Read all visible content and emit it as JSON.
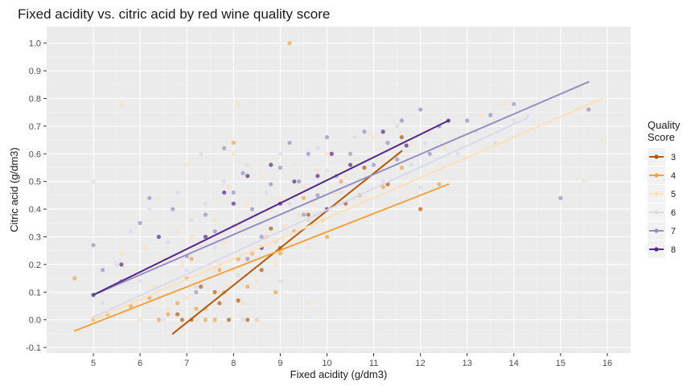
{
  "chart_data": {
    "type": "scatter",
    "title": "Fixed acidity vs. citric acid by red wine quality score",
    "xlabel": "Fixed acidity (g/dm3)",
    "ylabel": "Citric acid (g/dm3)",
    "xlim": [
      4.0,
      16.5
    ],
    "ylim": [
      -0.12,
      1.06
    ],
    "x_ticks": [
      "5",
      "6",
      "7",
      "8",
      "9",
      "10",
      "11",
      "12",
      "13",
      "14",
      "15",
      "16"
    ],
    "y_ticks": [
      "-0.1",
      "0.0",
      "0.1",
      "0.2",
      "0.3",
      "0.4",
      "0.5",
      "0.6",
      "0.7",
      "0.8",
      "0.9",
      "1.0"
    ],
    "grid": true,
    "legend": {
      "title_line1": "Quality",
      "title_line2": "Score",
      "placement": "right",
      "entries": [
        "3",
        "4",
        "5",
        "6",
        "7",
        "8"
      ]
    },
    "series": [
      {
        "name": "3",
        "color": "#b35806",
        "trend": {
          "x": [
            6.7,
            11.6
          ],
          "y": [
            -0.05,
            0.61
          ]
        },
        "points": [
          [
            6.8,
            0.02
          ],
          [
            7.1,
            0.0
          ],
          [
            7.4,
            0.04
          ],
          [
            7.6,
            0.1
          ],
          [
            7.9,
            0.0
          ],
          [
            8.1,
            0.07
          ],
          [
            8.3,
            0.0
          ],
          [
            8.4,
            0.24
          ],
          [
            8.6,
            0.18
          ],
          [
            9.0,
            0.26
          ],
          [
            9.6,
            0.38
          ],
          [
            10.4,
            0.42
          ],
          [
            10.8,
            0.55
          ],
          [
            11.6,
            0.66
          ],
          [
            12.0,
            0.4
          ],
          [
            11.3,
            0.49
          ],
          [
            7.3,
            0.12
          ],
          [
            8.8,
            0.33
          ],
          [
            6.9,
            0.0
          ],
          [
            7.7,
            0.06
          ]
        ]
      },
      {
        "name": "4",
        "color": "#f1a340",
        "trend": {
          "x": [
            4.6,
            12.6
          ],
          "y": [
            -0.04,
            0.49
          ]
        },
        "points": [
          [
            4.6,
            0.15
          ],
          [
            5.0,
            0.0
          ],
          [
            5.3,
            0.02
          ],
          [
            5.8,
            0.05
          ],
          [
            6.2,
            0.08
          ],
          [
            6.4,
            0.0
          ],
          [
            6.8,
            0.06
          ],
          [
            7.0,
            0.15
          ],
          [
            7.1,
            0.22
          ],
          [
            7.2,
            0.04
          ],
          [
            7.4,
            0.0
          ],
          [
            7.7,
            0.18
          ],
          [
            7.8,
            0.1
          ],
          [
            8.0,
            0.64
          ],
          [
            8.1,
            0.22
          ],
          [
            8.3,
            0.12
          ],
          [
            8.5,
            0.0
          ],
          [
            8.7,
            0.3
          ],
          [
            9.0,
            0.24
          ],
          [
            9.2,
            1.0
          ],
          [
            9.5,
            0.44
          ],
          [
            9.9,
            0.36
          ],
          [
            10.3,
            0.5
          ],
          [
            10.7,
            0.45
          ],
          [
            11.2,
            0.48
          ],
          [
            11.6,
            0.55
          ],
          [
            12.4,
            0.49
          ],
          [
            8.9,
            0.1
          ],
          [
            7.6,
            0.0
          ],
          [
            6.6,
            0.02
          ],
          [
            9.3,
            0.32
          ],
          [
            10.0,
            0.3
          ]
        ]
      },
      {
        "name": "5",
        "color": "#fee0b6",
        "trend": {
          "x": [
            5.0,
            15.9
          ],
          "y": [
            0.0,
            0.8
          ]
        },
        "points": [
          [
            5.2,
            0.1
          ],
          [
            5.6,
            0.78
          ],
          [
            5.9,
            0.16
          ],
          [
            6.1,
            0.26
          ],
          [
            6.3,
            0.12
          ],
          [
            6.5,
            0.22
          ],
          [
            6.6,
            0.04
          ],
          [
            6.8,
            0.32
          ],
          [
            6.9,
            0.2
          ],
          [
            7.0,
            0.08
          ],
          [
            7.1,
            0.3
          ],
          [
            7.2,
            0.0
          ],
          [
            7.3,
            0.26
          ],
          [
            7.4,
            0.04
          ],
          [
            7.5,
            0.2
          ],
          [
            7.6,
            0.36
          ],
          [
            7.7,
            0.1
          ],
          [
            7.8,
            0.28
          ],
          [
            7.9,
            0.48
          ],
          [
            8.0,
            0.18
          ],
          [
            8.1,
            0.34
          ],
          [
            8.2,
            0.06
          ],
          [
            8.3,
            0.42
          ],
          [
            8.4,
            0.24
          ],
          [
            8.5,
            0.14
          ],
          [
            8.6,
            0.52
          ],
          [
            8.7,
            0.3
          ],
          [
            8.8,
            0.4
          ],
          [
            8.9,
            0.2
          ],
          [
            9.0,
            0.44
          ],
          [
            9.1,
            0.34
          ],
          [
            9.2,
            0.28
          ],
          [
            9.3,
            0.56
          ],
          [
            9.4,
            0.38
          ],
          [
            9.5,
            0.48
          ],
          [
            9.6,
            0.26
          ],
          [
            9.7,
            0.42
          ],
          [
            9.8,
            0.54
          ],
          [
            9.9,
            0.36
          ],
          [
            10.0,
            0.6
          ],
          [
            10.2,
            0.46
          ],
          [
            10.4,
            0.52
          ],
          [
            10.6,
            0.58
          ],
          [
            10.8,
            0.5
          ],
          [
            11.0,
            0.66
          ],
          [
            11.2,
            0.56
          ],
          [
            11.5,
            0.6
          ],
          [
            11.8,
            0.64
          ],
          [
            12.2,
            0.68
          ],
          [
            12.5,
            0.62
          ],
          [
            13.0,
            0.72
          ],
          [
            13.3,
            0.74
          ],
          [
            13.8,
            0.78
          ],
          [
            15.5,
            0.5
          ],
          [
            15.9,
            0.65
          ],
          [
            7.0,
            0.56
          ],
          [
            6.4,
            0.44
          ],
          [
            8.1,
            0.78
          ],
          [
            7.4,
            0.5
          ],
          [
            6.0,
            0.0
          ],
          [
            5.6,
            0.24
          ],
          [
            8.5,
            0.0
          ],
          [
            8.0,
            0.6
          ],
          [
            9.6,
            0.06
          ],
          [
            7.9,
            0.12
          ]
        ]
      },
      {
        "name": "6",
        "color": "#d8daeb",
        "trend": {
          "x": [
            5.0,
            14.3
          ],
          "y": [
            0.01,
            0.73
          ]
        },
        "points": [
          [
            5.0,
            0.5
          ],
          [
            5.2,
            0.06
          ],
          [
            5.5,
            0.2
          ],
          [
            5.8,
            0.32
          ],
          [
            6.0,
            0.14
          ],
          [
            6.2,
            0.4
          ],
          [
            6.4,
            0.08
          ],
          [
            6.6,
            0.28
          ],
          [
            6.8,
            0.46
          ],
          [
            7.0,
            0.18
          ],
          [
            7.1,
            0.36
          ],
          [
            7.2,
            0.12
          ],
          [
            7.4,
            0.42
          ],
          [
            7.6,
            0.26
          ],
          [
            7.8,
            0.5
          ],
          [
            8.0,
            0.34
          ],
          [
            8.1,
            0.16
          ],
          [
            8.3,
            0.56
          ],
          [
            8.5,
            0.38
          ],
          [
            8.7,
            0.46
          ],
          [
            8.9,
            0.28
          ],
          [
            9.0,
            0.6
          ],
          [
            9.2,
            0.42
          ],
          [
            9.4,
            0.5
          ],
          [
            9.6,
            0.36
          ],
          [
            9.8,
            0.62
          ],
          [
            10.0,
            0.54
          ],
          [
            10.3,
            0.46
          ],
          [
            10.6,
            0.66
          ],
          [
            10.9,
            0.58
          ],
          [
            11.2,
            0.5
          ],
          [
            11.5,
            0.7
          ],
          [
            11.8,
            0.56
          ],
          [
            12.1,
            0.64
          ],
          [
            12.4,
            0.7
          ],
          [
            12.8,
            0.6
          ],
          [
            13.2,
            0.68
          ],
          [
            13.6,
            0.64
          ],
          [
            14.0,
            0.72
          ],
          [
            14.3,
            0.74
          ],
          [
            12.0,
            0.48
          ],
          [
            7.3,
            0.6
          ],
          [
            6.5,
            0.0
          ],
          [
            8.2,
            0.0
          ],
          [
            9.0,
            0.14
          ]
        ]
      },
      {
        "name": "7",
        "color": "#998ec3",
        "trend": {
          "x": [
            5.0,
            15.6
          ],
          "y": [
            0.09,
            0.86
          ]
        },
        "points": [
          [
            5.0,
            0.27
          ],
          [
            5.2,
            0.18
          ],
          [
            5.6,
            0.14
          ],
          [
            6.0,
            0.35
          ],
          [
            6.2,
            0.44
          ],
          [
            6.7,
            0.4
          ],
          [
            7.0,
            0.23
          ],
          [
            7.2,
            0.1
          ],
          [
            7.4,
            0.38
          ],
          [
            7.6,
            0.32
          ],
          [
            7.8,
            0.62
          ],
          [
            8.0,
            0.46
          ],
          [
            8.2,
            0.53
          ],
          [
            8.4,
            0.4
          ],
          [
            8.6,
            0.3
          ],
          [
            8.8,
            0.49
          ],
          [
            9.0,
            0.55
          ],
          [
            9.2,
            0.64
          ],
          [
            9.4,
            0.5
          ],
          [
            9.6,
            0.6
          ],
          [
            9.8,
            0.45
          ],
          [
            10.0,
            0.66
          ],
          [
            10.2,
            0.52
          ],
          [
            10.5,
            0.6
          ],
          [
            10.8,
            0.68
          ],
          [
            11.0,
            0.56
          ],
          [
            11.3,
            0.64
          ],
          [
            11.6,
            0.72
          ],
          [
            12.0,
            0.76
          ],
          [
            12.4,
            0.7
          ],
          [
            13.0,
            0.72
          ],
          [
            13.5,
            0.74
          ],
          [
            15.0,
            0.44
          ],
          [
            15.6,
            0.76
          ],
          [
            14.0,
            0.78
          ],
          [
            12.2,
            0.6
          ],
          [
            11.5,
            0.58
          ],
          [
            8.3,
            0.22
          ],
          [
            9.5,
            0.38
          ]
        ]
      },
      {
        "name": "8",
        "color": "#542788",
        "trend": {
          "x": [
            5.0,
            12.6
          ],
          "y": [
            0.09,
            0.72
          ]
        },
        "points": [
          [
            5.0,
            0.09
          ],
          [
            5.6,
            0.2
          ],
          [
            6.4,
            0.3
          ],
          [
            7.4,
            0.3
          ],
          [
            7.8,
            0.46
          ],
          [
            8.0,
            0.42
          ],
          [
            8.3,
            0.52
          ],
          [
            8.8,
            0.56
          ],
          [
            9.0,
            0.42
          ],
          [
            9.3,
            0.5
          ],
          [
            9.8,
            0.52
          ],
          [
            10.1,
            0.6
          ],
          [
            10.5,
            0.56
          ],
          [
            11.2,
            0.68
          ],
          [
            11.7,
            0.63
          ],
          [
            12.6,
            0.72
          ],
          [
            10.0,
            0.4
          ],
          [
            8.6,
            0.26
          ]
        ]
      }
    ]
  }
}
